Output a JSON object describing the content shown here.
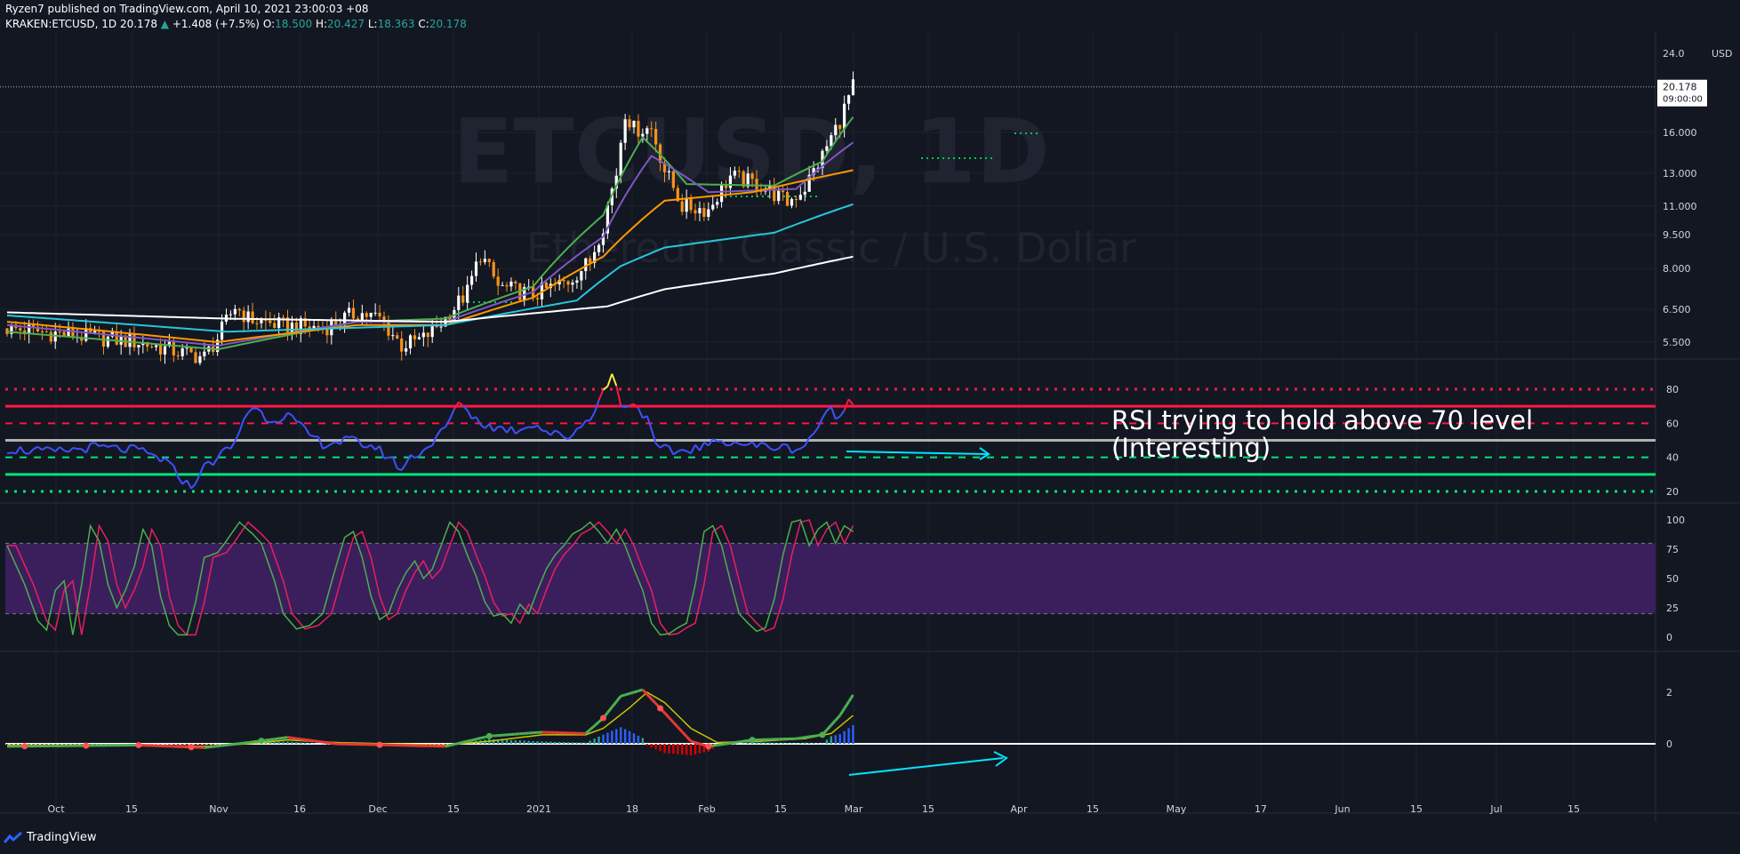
{
  "header": {
    "publisher_line": "Ryzen7 published on TradingView.com, April 10, 2021 23:00:03 +08",
    "symbol": "KRAKEN:ETCUSD, 1D",
    "last": "20.178",
    "change": "+1.408 (+7.5%)",
    "open_label": "O:",
    "open": "18.500",
    "high_label": "H:",
    "high": "20.427",
    "low_label": "L:",
    "low": "18.363",
    "close_label": "C:",
    "close": "20.178"
  },
  "watermark": {
    "symbol": "ETCUSD, 1D",
    "name": "Ethereum Classic / U.S. Dollar"
  },
  "price_axis": {
    "currency": "USD",
    "top_tick": "24.0",
    "last_price": "20.178",
    "countdown": "09:00:00"
  },
  "annotation": {
    "line1": "RSI trying to hold above 70 level",
    "line2": "(Interesting)"
  },
  "footer": {
    "brand": "TradingView"
  },
  "colors": {
    "background": "#131722",
    "up_candle": "#ffffff",
    "down_candle": "#f7931a",
    "ema_green": "#4caf50",
    "ema_purple": "#7e57c2",
    "ema_orange": "#ff9800",
    "ema_cyan": "#26c6da",
    "ema_white": "#ffffff",
    "rsi_line": "#3f51ff",
    "rsi_overbought": "#ff1744",
    "rsi_oversold": "#00e676",
    "stoch_k": "#4caf50",
    "stoch_d": "#e91e63",
    "stoch_band": "#3b1f5c",
    "macd_up": "#26a69a",
    "macd_down": "#d50000",
    "arrow": "#00e5ff"
  },
  "chart_data": {
    "type": "line",
    "x_ticks": [
      "Oct",
      "15",
      "Nov",
      "16",
      "Dec",
      "15",
      "2021",
      "18",
      "Feb",
      "15",
      "Mar",
      "15",
      "Apr",
      "15",
      "May",
      "17",
      "Jun",
      "15",
      "Jul",
      "15"
    ],
    "panes": [
      {
        "name": "price",
        "scale": "log",
        "y_ticks": [
          "16.000",
          "13.000",
          "11.000",
          "9.500",
          "8.000",
          "6.500",
          "5.500"
        ],
        "close_anchors": [
          [
            0,
            5.9
          ],
          [
            15,
            5.7
          ],
          [
            30,
            5.5
          ],
          [
            40,
            5.2
          ],
          [
            45,
            5.1
          ],
          [
            48,
            5.6
          ],
          [
            52,
            6.6
          ],
          [
            55,
            6.2
          ],
          [
            62,
            6.0
          ],
          [
            72,
            5.9
          ],
          [
            80,
            6.4
          ],
          [
            85,
            6.2
          ],
          [
            90,
            5.4
          ],
          [
            95,
            5.6
          ],
          [
            100,
            6.2
          ],
          [
            105,
            7.1
          ],
          [
            108,
            8.6
          ],
          [
            112,
            7.3
          ],
          [
            120,
            7.0
          ],
          [
            128,
            7.5
          ],
          [
            133,
            8.3
          ],
          [
            136,
            10.0
          ],
          [
            139,
            13.0
          ],
          [
            141,
            17.8
          ],
          [
            143,
            16.3
          ],
          [
            147,
            16.3
          ],
          [
            150,
            13.2
          ],
          [
            154,
            11.0
          ],
          [
            160,
            10.8
          ],
          [
            165,
            12.8
          ],
          [
            172,
            12.2
          ],
          [
            178,
            11.2
          ],
          [
            182,
            12.1
          ],
          [
            186,
            14.2
          ],
          [
            190,
            17.0
          ],
          [
            193,
            20.18
          ]
        ],
        "ema_anchors": {
          "green": [
            [
              0,
              5.8
            ],
            [
              48,
              5.3
            ],
            [
              80,
              6.1
            ],
            [
              100,
              6.2
            ],
            [
              120,
              7.3
            ],
            [
              136,
              10.5
            ],
            [
              145,
              15.6
            ],
            [
              155,
              12.3
            ],
            [
              175,
              12.2
            ],
            [
              186,
              13.8
            ],
            [
              193,
              17.3
            ]
          ],
          "purple": [
            [
              0,
              6.0
            ],
            [
              48,
              5.4
            ],
            [
              80,
              6.1
            ],
            [
              100,
              6.1
            ],
            [
              120,
              7.1
            ],
            [
              136,
              9.4
            ],
            [
              147,
              14.2
            ],
            [
              160,
              11.8
            ],
            [
              180,
              12.0
            ],
            [
              193,
              15.2
            ]
          ],
          "orange": [
            [
              0,
              6.1
            ],
            [
              48,
              5.5
            ],
            [
              80,
              6.0
            ],
            [
              100,
              6.0
            ],
            [
              120,
              6.9
            ],
            [
              136,
              8.5
            ],
            [
              150,
              11.3
            ],
            [
              170,
              11.8
            ],
            [
              193,
              13.2
            ]
          ],
          "cyan": [
            [
              0,
              6.3
            ],
            [
              50,
              5.8
            ],
            [
              100,
              6.0
            ],
            [
              130,
              6.8
            ],
            [
              140,
              8.1
            ],
            [
              150,
              8.9
            ],
            [
              175,
              9.6
            ],
            [
              193,
              11.1
            ]
          ],
          "white": [
            [
              0,
              6.4
            ],
            [
              50,
              6.2
            ],
            [
              100,
              6.1
            ],
            [
              137,
              6.6
            ],
            [
              150,
              7.2
            ],
            [
              175,
              7.8
            ],
            [
              193,
              8.5
            ]
          ]
        }
      },
      {
        "name": "RSI",
        "y_ticks": [
          "80",
          "60",
          "40",
          "20"
        ],
        "levels": [
          80,
          70,
          60,
          50,
          40,
          30,
          20
        ],
        "anchors": [
          [
            0,
            45
          ],
          [
            10,
            43
          ],
          [
            20,
            46
          ],
          [
            30,
            44
          ],
          [
            36,
            38
          ],
          [
            40,
            27
          ],
          [
            42,
            22
          ],
          [
            44,
            32
          ],
          [
            48,
            40
          ],
          [
            52,
            48
          ],
          [
            54,
            63
          ],
          [
            56,
            70
          ],
          [
            60,
            62
          ],
          [
            64,
            65
          ],
          [
            68,
            55
          ],
          [
            72,
            48
          ],
          [
            78,
            50
          ],
          [
            84,
            46
          ],
          [
            88,
            38
          ],
          [
            90,
            33
          ],
          [
            92,
            40
          ],
          [
            96,
            46
          ],
          [
            100,
            57
          ],
          [
            102,
            68
          ],
          [
            104,
            72
          ],
          [
            106,
            64
          ],
          [
            110,
            58
          ],
          [
            116,
            56
          ],
          [
            120,
            60
          ],
          [
            124,
            54
          ],
          [
            128,
            52
          ],
          [
            132,
            61
          ],
          [
            134,
            68
          ],
          [
            136,
            78
          ],
          [
            138,
            89
          ],
          [
            140,
            72
          ],
          [
            144,
            70
          ],
          [
            146,
            62
          ],
          [
            148,
            46
          ],
          [
            152,
            43
          ],
          [
            158,
            46
          ],
          [
            164,
            50
          ],
          [
            170,
            47
          ],
          [
            176,
            46
          ],
          [
            180,
            45
          ],
          [
            182,
            47
          ],
          [
            184,
            55
          ],
          [
            186,
            61
          ],
          [
            188,
            69
          ],
          [
            190,
            62
          ],
          [
            192,
            74
          ],
          [
            193,
            72
          ]
        ]
      },
      {
        "name": "Stochastic RSI",
        "y_ticks": [
          "100",
          "75",
          "50",
          "25",
          "0"
        ],
        "band": [
          20,
          80
        ],
        "k_anchors": [
          [
            0,
            78
          ],
          [
            4,
            45
          ],
          [
            7,
            14
          ],
          [
            9,
            6
          ],
          [
            11,
            40
          ],
          [
            13,
            48
          ],
          [
            15,
            2
          ],
          [
            17,
            45
          ],
          [
            19,
            95
          ],
          [
            21,
            82
          ],
          [
            23,
            45
          ],
          [
            25,
            25
          ],
          [
            27,
            40
          ],
          [
            29,
            60
          ],
          [
            31,
            92
          ],
          [
            33,
            78
          ],
          [
            35,
            35
          ],
          [
            37,
            10
          ],
          [
            39,
            2
          ],
          [
            41,
            2
          ],
          [
            43,
            30
          ],
          [
            45,
            68
          ],
          [
            48,
            72
          ],
          [
            50,
            82
          ],
          [
            53,
            98
          ],
          [
            56,
            88
          ],
          [
            58,
            80
          ],
          [
            61,
            48
          ],
          [
            63,
            20
          ],
          [
            66,
            7
          ],
          [
            69,
            10
          ],
          [
            72,
            20
          ],
          [
            75,
            60
          ],
          [
            77,
            85
          ],
          [
            79,
            90
          ],
          [
            81,
            68
          ],
          [
            83,
            35
          ],
          [
            85,
            15
          ],
          [
            87,
            20
          ],
          [
            89,
            40
          ],
          [
            91,
            55
          ],
          [
            93,
            65
          ],
          [
            95,
            50
          ],
          [
            97,
            58
          ],
          [
            99,
            78
          ],
          [
            101,
            98
          ],
          [
            103,
            90
          ],
          [
            105,
            70
          ],
          [
            107,
            52
          ],
          [
            109,
            30
          ],
          [
            111,
            18
          ],
          [
            113,
            20
          ],
          [
            115,
            12
          ],
          [
            117,
            28
          ],
          [
            119,
            20
          ],
          [
            121,
            40
          ],
          [
            123,
            58
          ],
          [
            125,
            70
          ],
          [
            127,
            78
          ],
          [
            129,
            88
          ],
          [
            131,
            92
          ],
          [
            133,
            98
          ],
          [
            135,
            90
          ],
          [
            137,
            80
          ],
          [
            139,
            92
          ],
          [
            141,
            78
          ],
          [
            143,
            58
          ],
          [
            145,
            40
          ],
          [
            147,
            12
          ],
          [
            149,
            2
          ],
          [
            151,
            3
          ],
          [
            153,
            8
          ],
          [
            155,
            12
          ],
          [
            157,
            45
          ],
          [
            159,
            90
          ],
          [
            161,
            95
          ],
          [
            163,
            78
          ],
          [
            165,
            48
          ],
          [
            167,
            20
          ],
          [
            169,
            12
          ],
          [
            171,
            5
          ],
          [
            173,
            8
          ],
          [
            175,
            32
          ],
          [
            177,
            70
          ],
          [
            179,
            98
          ],
          [
            181,
            100
          ],
          [
            183,
            78
          ],
          [
            185,
            92
          ],
          [
            187,
            98
          ],
          [
            189,
            80
          ],
          [
            191,
            95
          ],
          [
            193,
            90
          ]
        ],
        "lag": 2
      },
      {
        "name": "MACD",
        "y_ticks": [
          "2",
          "0"
        ],
        "macd_anchors": [
          [
            0,
            -0.1
          ],
          [
            30,
            -0.05
          ],
          [
            45,
            -0.15
          ],
          [
            55,
            0.05
          ],
          [
            64,
            0.25
          ],
          [
            75,
            0.0
          ],
          [
            100,
            -0.1
          ],
          [
            110,
            0.3
          ],
          [
            122,
            0.45
          ],
          [
            132,
            0.4
          ],
          [
            136,
            1.0
          ],
          [
            140,
            1.85
          ],
          [
            145,
            2.1
          ],
          [
            150,
            1.2
          ],
          [
            156,
            0.1
          ],
          [
            160,
            -0.1
          ],
          [
            170,
            0.15
          ],
          [
            180,
            0.2
          ],
          [
            186,
            0.35
          ],
          [
            190,
            1.1
          ],
          [
            193,
            1.9
          ]
        ],
        "signal_anchors": [
          [
            0,
            -0.05
          ],
          [
            30,
            -0.05
          ],
          [
            45,
            -0.1
          ],
          [
            55,
            0.0
          ],
          [
            64,
            0.15
          ],
          [
            75,
            0.05
          ],
          [
            100,
            -0.05
          ],
          [
            110,
            0.1
          ],
          [
            122,
            0.35
          ],
          [
            132,
            0.35
          ],
          [
            136,
            0.6
          ],
          [
            142,
            1.4
          ],
          [
            146,
            2.0
          ],
          [
            150,
            1.6
          ],
          [
            156,
            0.6
          ],
          [
            162,
            0.05
          ],
          [
            172,
            0.1
          ],
          [
            182,
            0.2
          ],
          [
            188,
            0.4
          ],
          [
            193,
            1.1
          ]
        ]
      }
    ]
  }
}
